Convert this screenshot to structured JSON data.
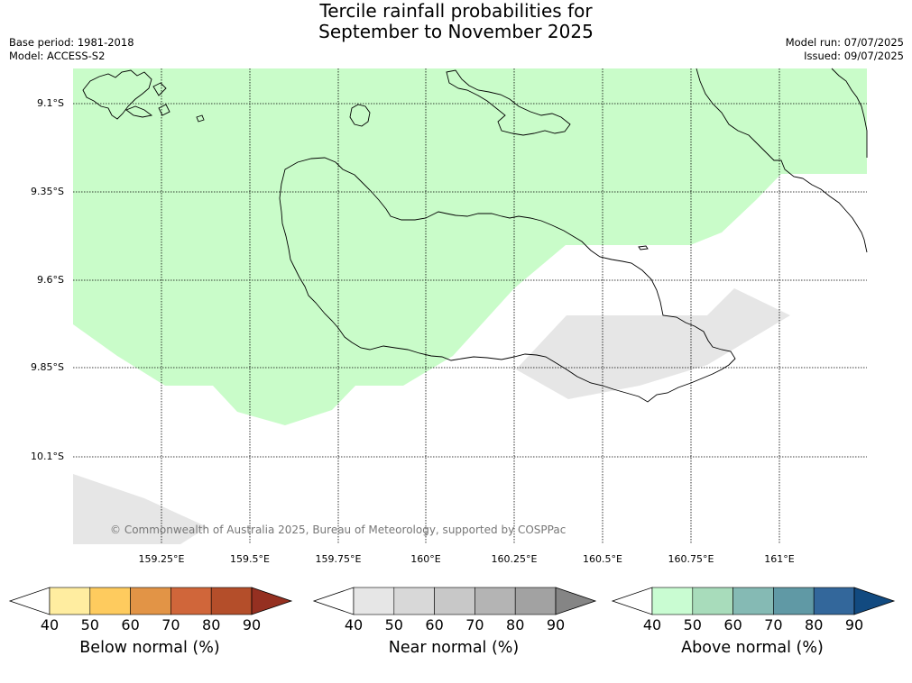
{
  "title": {
    "line1": "Tercile rainfall probabilities for",
    "line2": "September to November 2025"
  },
  "meta": {
    "base_period": "Base period: 1981-2018",
    "model": "Model: ACCESS-S2",
    "model_run": "Model run: 07/07/2025",
    "issued": "Issued: 09/07/2025"
  },
  "map": {
    "lat_labels": [
      "9.1°S",
      "9.35°S",
      "9.6°S",
      "9.85°S",
      "10.1°S"
    ],
    "lon_labels": [
      "159.25°E",
      "159.5°E",
      "159.75°E",
      "160°E",
      "160.25°E",
      "160.5°E",
      "160.75°E",
      "161°E"
    ],
    "copyright": "© Commonwealth of Australia 2025, Bureau of Meteorology, supported by COSPPac",
    "colors": {
      "above_normal_fill": "#c9fcc9",
      "near_normal_fill": "#e6e6e6",
      "coastline": "#000000",
      "gridline": "#000000"
    }
  },
  "colorbars": [
    {
      "title": "Below normal (%)",
      "ticks": [
        "40",
        "50",
        "60",
        "70",
        "80",
        "90"
      ],
      "colors": [
        "#ffffff",
        "#ffeda0",
        "#fecb5e",
        "#e29446",
        "#d0663a",
        "#b44e2a",
        "#953021"
      ]
    },
    {
      "title": "Near normal (%)",
      "ticks": [
        "40",
        "50",
        "60",
        "70",
        "80",
        "90"
      ],
      "colors": [
        "#ffffff",
        "#e6e6e6",
        "#d8d8d8",
        "#c8c8c8",
        "#b4b4b4",
        "#a2a2a2",
        "#858585"
      ]
    },
    {
      "title": "Above normal (%)",
      "ticks": [
        "40",
        "50",
        "60",
        "70",
        "80",
        "90"
      ],
      "colors": [
        "#ffffff",
        "#c9fcd2",
        "#a8dcbb",
        "#85bab4",
        "#6099a5",
        "#33679b",
        "#124a80"
      ]
    }
  ]
}
